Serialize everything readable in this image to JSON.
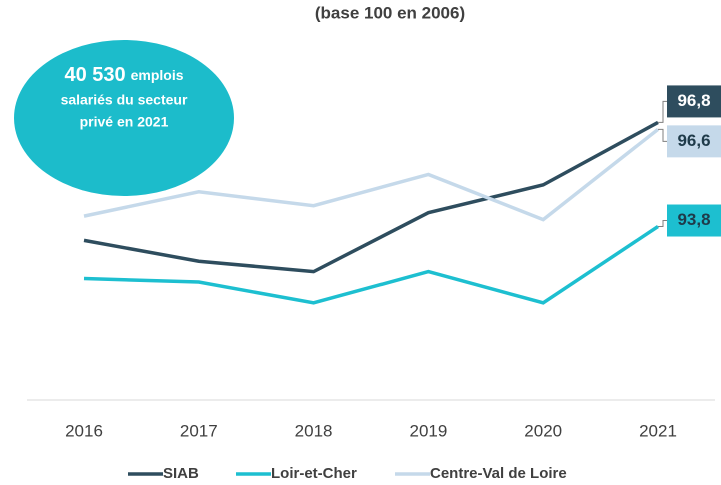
{
  "chart_data": {
    "type": "line",
    "title": "(base 100 en 2006)",
    "annotation": {
      "number": "40 530",
      "lines": [
        "emplois",
        "salariés du secteur",
        "privé en 2021"
      ]
    },
    "categories": [
      "2016",
      "2017",
      "2018",
      "2019",
      "2020",
      "2021"
    ],
    "ylim": [
      88.8,
      99.7
    ],
    "series": [
      {
        "name": "SIAB",
        "color": "#2e4d5e",
        "values": [
          93.4,
          92.8,
          92.5,
          94.2,
          95.0,
          96.8
        ],
        "value_labels": [
          null,
          null,
          null,
          null,
          null,
          "96,8"
        ]
      },
      {
        "name": "Loir-et-Cher",
        "color": "#1dbfd0",
        "values": [
          92.3,
          92.2,
          91.6,
          92.5,
          91.6,
          93.8
        ],
        "value_labels": [
          null,
          null,
          null,
          null,
          null,
          "93,8"
        ]
      },
      {
        "name": "Centre-Val de Loire",
        "color": "#c5d9ea",
        "values": [
          94.1,
          94.8,
          94.4,
          95.3,
          94.0,
          96.6
        ],
        "value_labels": [
          null,
          null,
          null,
          null,
          null,
          "96,6"
        ]
      }
    ]
  }
}
